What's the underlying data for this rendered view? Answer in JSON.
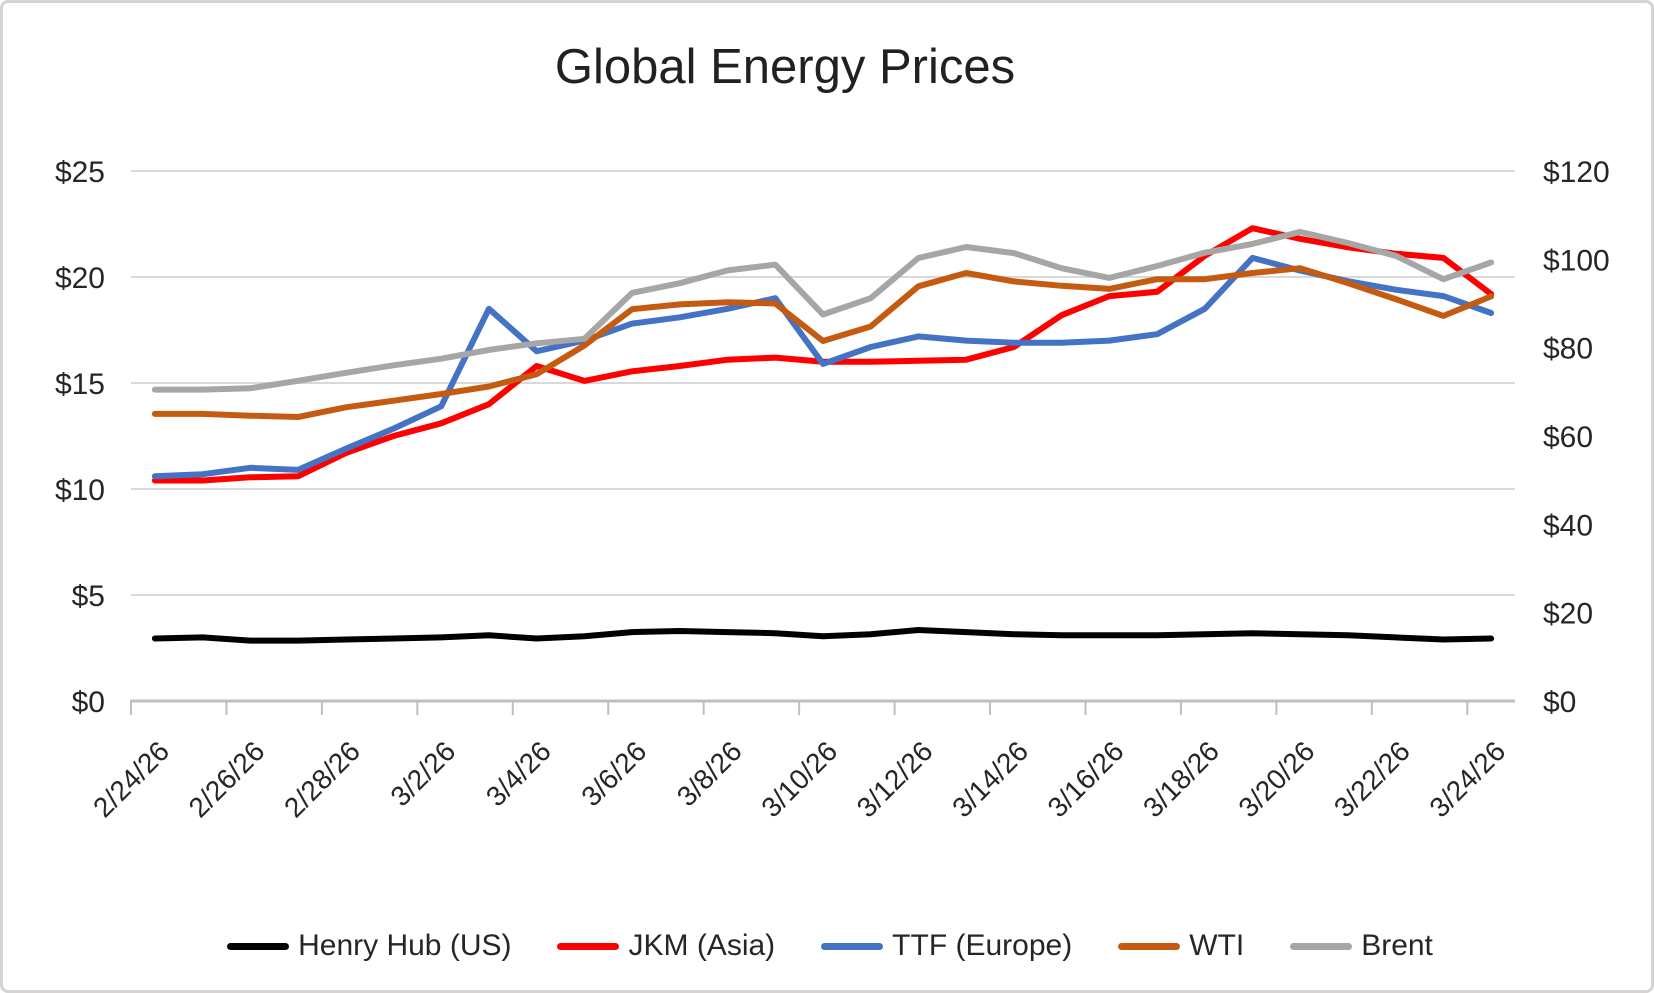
{
  "chart_data": {
    "type": "line",
    "title": "Global Energy Prices",
    "xlabel": "",
    "ylabel_left": "",
    "ylabel_right": "",
    "grid": true,
    "legend_position": "bottom",
    "categories": [
      "2/24/26",
      "2/25/26",
      "2/26/26",
      "2/27/26",
      "2/28/26",
      "3/1/26",
      "3/2/26",
      "3/3/26",
      "3/4/26",
      "3/5/26",
      "3/6/26",
      "3/7/26",
      "3/8/26",
      "3/9/26",
      "3/10/26",
      "3/11/26",
      "3/12/26",
      "3/13/26",
      "3/14/26",
      "3/15/26",
      "3/16/26",
      "3/17/26",
      "3/18/26",
      "3/19/26",
      "3/20/26",
      "3/21/26",
      "3/22/26",
      "3/23/26",
      "3/24/26"
    ],
    "x_label_interval": 2,
    "x_tick_labels": [
      "2/24/26",
      "2/26/26",
      "2/28/26",
      "3/2/26",
      "3/4/26",
      "3/6/26",
      "3/8/26",
      "3/10/26",
      "3/12/26",
      "3/14/26",
      "3/16/26",
      "3/18/26",
      "3/20/26",
      "3/22/26",
      "3/24/26"
    ],
    "left_axis": {
      "min": 0,
      "max": 25,
      "tick_values": [
        0,
        5,
        10,
        15,
        20,
        25
      ],
      "tick_labels": [
        "$0",
        "$5",
        "$10",
        "$15",
        "$20",
        "$25"
      ]
    },
    "right_axis": {
      "min": 0,
      "max": 120,
      "tick_values": [
        0,
        20,
        40,
        60,
        80,
        100,
        120
      ],
      "tick_labels": [
        "$0",
        "$20",
        "$40",
        "$60",
        "$80",
        "$100",
        "$120"
      ]
    },
    "series": [
      {
        "name": "Henry Hub (US)",
        "axis": "left",
        "color": "#000000",
        "values": [
          2.95,
          3.0,
          2.85,
          2.85,
          2.9,
          2.95,
          3.0,
          3.1,
          2.95,
          3.05,
          3.25,
          3.3,
          3.25,
          3.2,
          3.05,
          3.15,
          3.35,
          3.25,
          3.15,
          3.1,
          3.1,
          3.1,
          3.15,
          3.2,
          3.15,
          3.1,
          3.0,
          2.9,
          2.95
        ]
      },
      {
        "name": "JKM (Asia)",
        "axis": "left",
        "color": "#FF0000",
        "values": [
          10.4,
          10.4,
          10.55,
          10.6,
          11.7,
          12.5,
          13.1,
          14.0,
          15.8,
          15.1,
          15.55,
          15.8,
          16.1,
          16.2,
          16.0,
          16.0,
          16.05,
          16.1,
          16.7,
          18.2,
          19.1,
          19.3,
          21.0,
          22.3,
          21.8,
          21.4,
          21.1,
          20.9,
          19.2
        ]
      },
      {
        "name": "TTF (Europe)",
        "axis": "left",
        "color": "#4472C4",
        "values": [
          10.6,
          10.7,
          11.0,
          10.9,
          11.9,
          12.85,
          13.9,
          18.5,
          16.5,
          17.0,
          17.8,
          18.1,
          18.5,
          19.0,
          15.9,
          16.7,
          17.2,
          17.0,
          16.9,
          16.9,
          17.0,
          17.3,
          18.5,
          20.9,
          20.3,
          19.8,
          19.4,
          19.1,
          18.3
        ]
      },
      {
        "name": "WTI",
        "axis": "right",
        "color": "#C55A11",
        "values": [
          65,
          65,
          64.6,
          64.3,
          66.5,
          68,
          69.5,
          71.2,
          74,
          80.5,
          88.7,
          89.8,
          90.3,
          90,
          81.5,
          84.8,
          93.9,
          96.9,
          95,
          94,
          93.3,
          95.5,
          95.5,
          96.9,
          98,
          94.6,
          91,
          87.2,
          91.6
        ]
      },
      {
        "name": "Brent",
        "axis": "right",
        "color": "#A6A6A6",
        "values": [
          70.5,
          70.5,
          70.8,
          72.5,
          74.3,
          76,
          77.5,
          79.5,
          81,
          82,
          92.4,
          94.6,
          97.5,
          98.8,
          87.5,
          91.2,
          100.3,
          102.8,
          101.4,
          98,
          95.8,
          98.5,
          101.5,
          103.5,
          106.2,
          103.7,
          100.8,
          95.5,
          99.3
        ]
      }
    ],
    "colors": {
      "gridline": "#D9D9D9",
      "axis_line": "#BFBFBF",
      "text": "#262626",
      "title_text": "#212121",
      "background": "#FFFFFF",
      "frame_border": "#D6D3D3"
    }
  }
}
